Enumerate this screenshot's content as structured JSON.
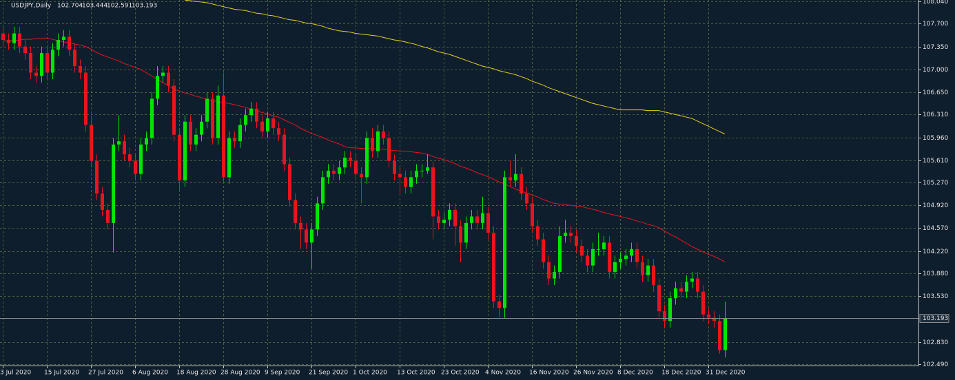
{
  "chart_data": {
    "type": "candlestick",
    "title": "USDJPY,Daily",
    "categories": [
      "3 Jul 2020",
      null,
      null,
      null,
      null,
      null,
      null,
      null,
      "15 Jul 2020",
      null,
      null,
      null,
      null,
      null,
      null,
      null,
      "27 Jul 2020",
      null,
      null,
      null,
      null,
      null,
      null,
      null,
      "6 Aug 2020",
      null,
      null,
      null,
      null,
      null,
      null,
      null,
      "18 Aug 2020",
      null,
      null,
      null,
      null,
      null,
      null,
      null,
      "28 Aug 2020",
      null,
      null,
      null,
      null,
      null,
      null,
      null,
      "9 Sep 2020",
      null,
      null,
      null,
      null,
      null,
      null,
      null,
      "21 Sep 2020",
      null,
      null,
      null,
      null,
      null,
      null,
      null,
      "1 Oct 2020",
      null,
      null,
      null,
      null,
      null,
      null,
      null,
      "13 Oct 2020",
      null,
      null,
      null,
      null,
      null,
      null,
      null,
      "23 Oct 2020",
      null,
      null,
      null,
      null,
      null,
      null,
      null,
      "4 Nov 2020",
      null,
      null,
      null,
      null,
      null,
      null,
      null,
      "16 Nov 2020",
      null,
      null,
      null,
      null,
      null,
      null,
      null,
      "26 Nov 2020",
      null,
      null,
      null,
      null,
      null,
      null,
      null,
      "8 Dec 2020",
      null,
      null,
      null,
      null,
      null,
      null,
      null,
      "18 Dec 2020",
      null,
      null,
      null,
      null,
      null,
      null,
      null,
      "31 Dec 2020",
      null,
      null,
      null
    ],
    "ohlc": [
      [
        107.55,
        107.65,
        107.35,
        107.45
      ],
      [
        107.45,
        107.55,
        107.3,
        107.4
      ],
      [
        107.4,
        107.65,
        107.3,
        107.55
      ],
      [
        107.55,
        107.65,
        107.25,
        107.35
      ],
      [
        107.35,
        107.45,
        107.15,
        107.25
      ],
      [
        107.25,
        107.35,
        106.85,
        106.95
      ],
      [
        106.95,
        107.05,
        106.8,
        106.9
      ],
      [
        106.9,
        107.35,
        106.8,
        107.25
      ],
      [
        107.25,
        107.35,
        106.85,
        106.95
      ],
      [
        106.95,
        107.4,
        106.85,
        107.3
      ],
      [
        107.3,
        107.55,
        107.2,
        107.45
      ],
      [
        107.45,
        107.6,
        107.35,
        107.5
      ],
      [
        107.5,
        107.6,
        107.2,
        107.3
      ],
      [
        107.3,
        107.4,
        106.95,
        107.05
      ],
      [
        107.05,
        107.15,
        106.85,
        106.95
      ],
      [
        106.95,
        107.05,
        106.05,
        106.15
      ],
      [
        106.15,
        106.25,
        105.5,
        105.6
      ],
      [
        105.6,
        105.7,
        105.0,
        105.1
      ],
      [
        105.1,
        105.2,
        104.75,
        104.85
      ],
      [
        104.85,
        104.95,
        104.55,
        104.65
      ],
      [
        104.65,
        105.95,
        104.2,
        105.85
      ],
      [
        105.85,
        106.3,
        105.75,
        105.9
      ],
      [
        105.9,
        106.0,
        105.6,
        105.7
      ],
      [
        105.7,
        105.8,
        105.5,
        105.6
      ],
      [
        105.6,
        105.7,
        105.3,
        105.4
      ],
      [
        105.4,
        105.95,
        105.3,
        105.85
      ],
      [
        105.85,
        106.05,
        105.75,
        105.95
      ],
      [
        105.95,
        106.65,
        105.85,
        106.55
      ],
      [
        106.55,
        107.05,
        106.45,
        106.9
      ],
      [
        106.9,
        107.05,
        106.8,
        106.95
      ],
      [
        106.95,
        107.05,
        106.65,
        106.75
      ],
      [
        106.75,
        106.85,
        105.9,
        106.0
      ],
      [
        106.0,
        106.1,
        105.15,
        105.3
      ],
      [
        105.3,
        106.3,
        105.2,
        106.2
      ],
      [
        106.2,
        106.3,
        105.75,
        105.85
      ],
      [
        105.85,
        106.1,
        105.75,
        106.0
      ],
      [
        106.0,
        106.3,
        105.9,
        106.2
      ],
      [
        106.2,
        106.65,
        106.1,
        106.55
      ],
      [
        106.55,
        106.65,
        105.85,
        105.95
      ],
      [
        105.95,
        106.75,
        105.85,
        106.6
      ],
      [
        106.6,
        106.95,
        105.25,
        105.35
      ],
      [
        105.35,
        106.05,
        105.25,
        105.95
      ],
      [
        105.95,
        106.05,
        105.8,
        105.9
      ],
      [
        105.9,
        106.25,
        105.8,
        106.15
      ],
      [
        106.15,
        106.4,
        106.05,
        106.3
      ],
      [
        106.3,
        106.5,
        106.2,
        106.4
      ],
      [
        106.4,
        106.5,
        106.1,
        106.2
      ],
      [
        106.2,
        106.3,
        105.95,
        106.05
      ],
      [
        106.05,
        106.35,
        105.95,
        106.25
      ],
      [
        106.25,
        106.35,
        106.0,
        106.1
      ],
      [
        106.1,
        106.2,
        105.9,
        106.0
      ],
      [
        106.0,
        106.1,
        105.45,
        105.55
      ],
      [
        105.55,
        105.65,
        104.9,
        105.0
      ],
      [
        105.0,
        105.1,
        104.55,
        104.65
      ],
      [
        104.65,
        104.75,
        104.25,
        104.55
      ],
      [
        104.55,
        104.65,
        104.25,
        104.35
      ],
      [
        104.35,
        104.65,
        103.95,
        104.55
      ],
      [
        104.55,
        105.05,
        104.45,
        104.95
      ],
      [
        104.95,
        105.45,
        104.85,
        105.35
      ],
      [
        105.35,
        105.55,
        105.25,
        105.45
      ],
      [
        105.45,
        105.55,
        105.3,
        105.4
      ],
      [
        105.4,
        105.6,
        105.3,
        105.5
      ],
      [
        105.5,
        105.75,
        105.4,
        105.65
      ],
      [
        105.65,
        105.75,
        105.5,
        105.6
      ],
      [
        105.6,
        105.7,
        105.3,
        105.4
      ],
      [
        105.4,
        105.5,
        104.95,
        105.35
      ],
      [
        105.35,
        106.05,
        105.25,
        105.95
      ],
      [
        105.95,
        106.1,
        105.65,
        105.75
      ],
      [
        105.75,
        106.15,
        105.65,
        106.05
      ],
      [
        106.05,
        106.15,
        105.85,
        105.95
      ],
      [
        105.95,
        106.05,
        105.5,
        105.6
      ],
      [
        105.6,
        105.7,
        105.3,
        105.4
      ],
      [
        105.4,
        105.5,
        105.1,
        105.35
      ],
      [
        105.35,
        105.45,
        105.1,
        105.2
      ],
      [
        105.2,
        105.45,
        105.1,
        105.35
      ],
      [
        105.35,
        105.55,
        105.25,
        105.45
      ],
      [
        105.45,
        105.55,
        105.35,
        105.45
      ],
      [
        105.45,
        105.7,
        105.4,
        105.5
      ],
      [
        105.5,
        105.6,
        104.4,
        104.75
      ],
      [
        104.75,
        104.85,
        104.55,
        104.65
      ],
      [
        104.65,
        104.8,
        104.55,
        104.7
      ],
      [
        104.7,
        104.95,
        104.6,
        104.85
      ],
      [
        104.85,
        104.95,
        104.3,
        104.6
      ],
      [
        104.6,
        104.7,
        104.05,
        104.35
      ],
      [
        104.35,
        104.75,
        104.25,
        104.65
      ],
      [
        104.65,
        104.85,
        104.55,
        104.75
      ],
      [
        104.75,
        104.85,
        104.55,
        104.65
      ],
      [
        104.65,
        105.05,
        104.55,
        104.8
      ],
      [
        104.8,
        104.9,
        104.4,
        104.5
      ],
      [
        104.5,
        104.6,
        103.35,
        103.45
      ],
      [
        103.45,
        103.55,
        103.2,
        103.35
      ],
      [
        103.35,
        105.45,
        103.2,
        105.35
      ],
      [
        105.35,
        105.6,
        105.2,
        105.3
      ],
      [
        105.3,
        105.7,
        105.2,
        105.4
      ],
      [
        105.4,
        105.5,
        105.0,
        105.1
      ],
      [
        105.1,
        105.2,
        104.85,
        104.95
      ],
      [
        104.95,
        105.05,
        104.5,
        104.6
      ],
      [
        104.6,
        104.7,
        104.3,
        104.4
      ],
      [
        104.4,
        104.5,
        103.95,
        104.05
      ],
      [
        104.05,
        104.15,
        103.7,
        103.8
      ],
      [
        103.8,
        104.0,
        103.7,
        103.9
      ],
      [
        103.9,
        104.6,
        103.8,
        104.45
      ],
      [
        104.45,
        104.7,
        104.35,
        104.5
      ],
      [
        104.5,
        104.6,
        104.35,
        104.45
      ],
      [
        104.45,
        104.55,
        104.2,
        104.3
      ],
      [
        104.3,
        104.4,
        104.05,
        104.15
      ],
      [
        104.15,
        104.25,
        103.9,
        104.0
      ],
      [
        104.0,
        104.35,
        103.9,
        104.25
      ],
      [
        104.25,
        104.5,
        104.15,
        104.25
      ],
      [
        104.25,
        104.45,
        104.15,
        104.35
      ],
      [
        104.35,
        104.45,
        103.8,
        103.9
      ],
      [
        103.9,
        104.15,
        103.8,
        104.05
      ],
      [
        104.05,
        104.2,
        103.95,
        104.1
      ],
      [
        104.1,
        104.25,
        104.0,
        104.15
      ],
      [
        104.15,
        104.35,
        104.05,
        104.25
      ],
      [
        104.25,
        104.35,
        103.95,
        104.05
      ],
      [
        104.05,
        104.15,
        103.75,
        103.85
      ],
      [
        103.85,
        104.1,
        103.75,
        104.0
      ],
      [
        104.0,
        104.1,
        103.6,
        103.7
      ],
      [
        103.7,
        103.8,
        103.2,
        103.3
      ],
      [
        103.3,
        103.4,
        103.05,
        103.15
      ],
      [
        103.15,
        103.6,
        103.05,
        103.5
      ],
      [
        103.5,
        103.75,
        103.4,
        103.65
      ],
      [
        103.65,
        103.75,
        103.5,
        103.6
      ],
      [
        103.6,
        103.85,
        103.5,
        103.75
      ],
      [
        103.75,
        103.9,
        103.65,
        103.8
      ],
      [
        103.8,
        103.9,
        103.5,
        103.6
      ],
      [
        103.6,
        103.7,
        103.15,
        103.25
      ],
      [
        103.25,
        103.35,
        103.1,
        103.2
      ],
      [
        103.2,
        103.3,
        103.05,
        103.15
      ],
      [
        103.15,
        103.25,
        102.65,
        102.704
      ],
      [
        102.704,
        103.444,
        102.591,
        103.193
      ]
    ],
    "up_color": "#00e600",
    "down_color": "#e8141e",
    "lines": [
      {
        "color": "#e8141e",
        "values": [
          107.43,
          107.44,
          107.44,
          107.45,
          107.46,
          107.46,
          107.47,
          107.47,
          107.48,
          107.46,
          107.44,
          107.42,
          107.41,
          107.39,
          107.37,
          107.35,
          107.31,
          107.26,
          107.22,
          107.19,
          107.16,
          107.13,
          107.09,
          107.06,
          107.03,
          107.0,
          106.95,
          106.9,
          106.85,
          106.8,
          106.75,
          106.7,
          106.67,
          106.64,
          106.62,
          106.59,
          106.57,
          106.54,
          106.52,
          106.51,
          106.49,
          106.48,
          106.46,
          106.44,
          106.42,
          106.39,
          106.37,
          106.34,
          106.32,
          106.29,
          106.27,
          106.23,
          106.19,
          106.15,
          106.1,
          106.06,
          106.02,
          105.99,
          105.96,
          105.92,
          105.89,
          105.86,
          105.82,
          105.8,
          105.8,
          105.79,
          105.79,
          105.79,
          105.78,
          105.78,
          105.77,
          105.76,
          105.75,
          105.75,
          105.74,
          105.73,
          105.72,
          105.7,
          105.67,
          105.64,
          105.62,
          105.59,
          105.56,
          105.52,
          105.49,
          105.46,
          105.42,
          105.39,
          105.36,
          105.32,
          105.28,
          105.25,
          105.21,
          105.17,
          105.14,
          105.11,
          105.08,
          105.05,
          105.01,
          104.98,
          104.95,
          104.94,
          104.93,
          104.92,
          104.91,
          104.9,
          104.88,
          104.86,
          104.84,
          104.81,
          104.79,
          104.77,
          104.75,
          104.73,
          104.71,
          104.68,
          104.66,
          104.63,
          104.61,
          104.58,
          104.53,
          104.48,
          104.44,
          104.39,
          104.34,
          104.29,
          104.25,
          104.21,
          104.17,
          104.14,
          104.1,
          104.06
        ]
      },
      {
        "color": "#e6d21e",
        "values": [
          null,
          null,
          null,
          null,
          null,
          null,
          null,
          null,
          null,
          null,
          null,
          null,
          null,
          null,
          null,
          null,
          null,
          null,
          null,
          null,
          null,
          null,
          null,
          null,
          null,
          null,
          null,
          null,
          null,
          null,
          null,
          null,
          null,
          108.06,
          108.05,
          108.04,
          108.03,
          108.02,
          108.0,
          107.98,
          107.96,
          107.94,
          107.92,
          107.91,
          107.9,
          107.88,
          107.86,
          107.85,
          107.83,
          107.82,
          107.8,
          107.78,
          107.76,
          107.75,
          107.73,
          107.71,
          107.7,
          107.68,
          107.66,
          107.63,
          107.61,
          107.59,
          107.58,
          107.57,
          107.55,
          107.54,
          107.53,
          107.52,
          107.51,
          107.49,
          107.47,
          107.45,
          107.44,
          107.42,
          107.4,
          107.38,
          107.35,
          107.33,
          107.3,
          107.27,
          107.25,
          107.23,
          107.2,
          107.17,
          107.14,
          107.11,
          107.08,
          107.05,
          107.03,
          107.01,
          106.98,
          106.96,
          106.94,
          106.92,
          106.89,
          106.86,
          106.82,
          106.79,
          106.76,
          106.72,
          106.69,
          106.66,
          106.63,
          106.6,
          106.57,
          106.54,
          106.51,
          106.48,
          106.46,
          106.44,
          106.42,
          106.4,
          106.38,
          106.38,
          106.38,
          106.38,
          106.38,
          106.37,
          106.37,
          106.37,
          106.35,
          106.33,
          106.31,
          106.29,
          106.27,
          106.25,
          106.21,
          106.17,
          106.13,
          106.09,
          106.05,
          106.01
        ]
      }
    ],
    "ylim": [
      102.469,
      108.061
    ],
    "yticks": [
      {
        "value": 108.04,
        "label": "108.040"
      },
      {
        "value": 107.7,
        "label": "107.700"
      },
      {
        "value": 107.35,
        "label": "107.350"
      },
      {
        "value": 107.0,
        "label": "107.000"
      },
      {
        "value": 106.65,
        "label": "106.650"
      },
      {
        "value": 106.31,
        "label": "106.310"
      },
      {
        "value": 105.96,
        "label": "105.960"
      },
      {
        "value": 105.61,
        "label": "105.610"
      },
      {
        "value": 105.27,
        "label": "105.270"
      },
      {
        "value": 104.92,
        "label": "104.920"
      },
      {
        "value": 104.57,
        "label": "104.570"
      },
      {
        "value": 104.22,
        "label": "104.220"
      },
      {
        "value": 103.88,
        "label": "103.880"
      },
      {
        "value": 103.53,
        "label": "103.530"
      },
      {
        "value": 102.83,
        "label": "102.830"
      },
      {
        "value": 102.49,
        "label": "102.490"
      }
    ],
    "grid": true
  }
}
